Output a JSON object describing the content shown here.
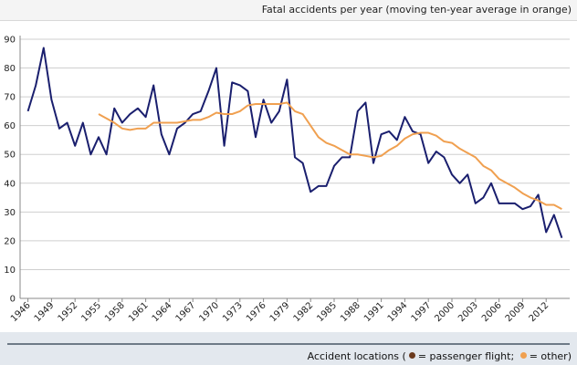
{
  "chart_data": {
    "type": "line",
    "title": "Fatal accidents per year (moving ten-year average in orange)",
    "x": [
      1946,
      1947,
      1948,
      1949,
      1950,
      1951,
      1952,
      1953,
      1954,
      1955,
      1956,
      1957,
      1958,
      1959,
      1960,
      1961,
      1962,
      1963,
      1964,
      1965,
      1966,
      1967,
      1968,
      1969,
      1970,
      1971,
      1972,
      1973,
      1974,
      1975,
      1976,
      1977,
      1978,
      1979,
      1980,
      1981,
      1982,
      1983,
      1984,
      1985,
      1986,
      1987,
      1988,
      1989,
      1990,
      1991,
      1992,
      1993,
      1994,
      1995,
      1996,
      1997,
      1998,
      1999,
      2000,
      2001,
      2002,
      2003,
      2004,
      2005,
      2006,
      2007,
      2008,
      2009,
      2010,
      2011,
      2012,
      2013,
      2014
    ],
    "series": [
      {
        "color": "#1a1f6e",
        "values": [
          65,
          74,
          87,
          69,
          59,
          61,
          53,
          61,
          50,
          56,
          50,
          66,
          61,
          64,
          66,
          63,
          74,
          57,
          50,
          59,
          61,
          64,
          65,
          72,
          80,
          53,
          75,
          74,
          72,
          56,
          69,
          61,
          65,
          76,
          49,
          47,
          37,
          39,
          39,
          46,
          49,
          49,
          65,
          68,
          47,
          57,
          58,
          55,
          63,
          58,
          57,
          47,
          51,
          49,
          43,
          40,
          43,
          33,
          35,
          40,
          33,
          33,
          33,
          31,
          32,
          36,
          23,
          29,
          21
        ]
      },
      {
        "color": "#f0a050",
        "values": [
          null,
          null,
          null,
          null,
          null,
          null,
          null,
          null,
          null,
          64,
          62.5,
          61,
          59,
          58.5,
          59,
          59,
          61,
          61,
          61,
          61,
          61.5,
          62,
          62,
          63,
          64.5,
          64,
          64,
          65,
          67,
          67.5,
          67.5,
          67.5,
          67.5,
          68,
          65,
          64,
          60,
          56,
          54,
          53,
          51.5,
          50,
          50,
          49.5,
          49,
          49.5,
          51.5,
          53,
          55.5,
          57,
          57.5,
          57.5,
          56.5,
          54.5,
          54,
          52,
          50.5,
          49,
          46,
          44.5,
          41.5,
          40,
          38.5,
          36.5,
          35,
          34,
          32.5,
          32.5,
          31
        ]
      }
    ],
    "xlim": [
      1945,
      2015
    ],
    "xticks": [
      1946,
      1949,
      1952,
      1955,
      1958,
      1961,
      1964,
      1967,
      1970,
      1973,
      1976,
      1979,
      1982,
      1985,
      1988,
      1991,
      1994,
      1997,
      2000,
      2003,
      2006,
      2009,
      2012
    ],
    "ylim": [
      0,
      90
    ],
    "yticks": [
      0,
      10,
      20,
      30,
      40,
      50,
      60,
      70,
      80,
      90
    ],
    "grid": true
  },
  "footer": {
    "lead": "Accident locations (",
    "items": [
      {
        "color": "#6b3a1e",
        "label": "= passenger flight;"
      },
      {
        "color": "#f0a050",
        "label": "= other)"
      }
    ]
  }
}
